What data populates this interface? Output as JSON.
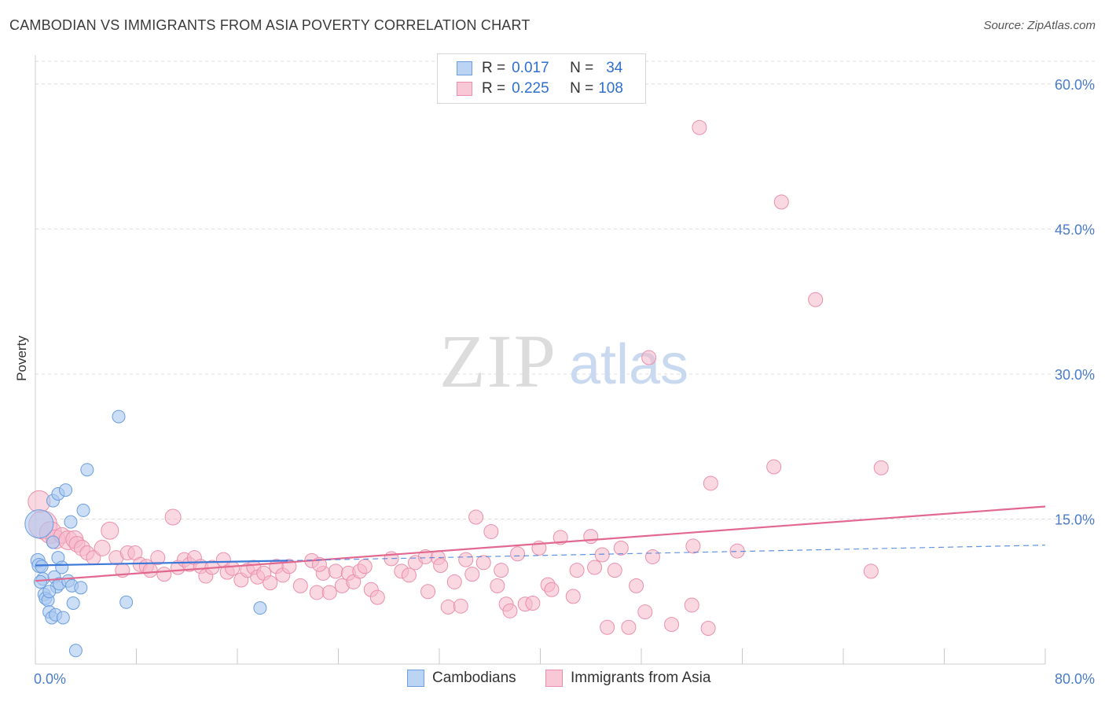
{
  "header": {
    "title": "CAMBODIAN VS IMMIGRANTS FROM ASIA POVERTY CORRELATION CHART",
    "source": "Source: ZipAtlas.com"
  },
  "legend": {
    "rows": [
      {
        "r_label": "R =",
        "r_value": "0.017",
        "n_label": "N =",
        "n_value": "34"
      },
      {
        "r_label": "R =",
        "r_value": "0.225",
        "n_label": "N =",
        "n_value": "108"
      }
    ]
  },
  "watermark": {
    "zip": "ZIP",
    "atlas": "atlas"
  },
  "colors": {
    "blue_fill": "#aac8f0",
    "blue_stroke": "#6a9ee0",
    "blue_line": "#3b78d8",
    "pink_fill": "#f6b8cb",
    "pink_stroke": "#eb8fac",
    "pink_line": "#e2688f",
    "grid": "#dcdcdc",
    "axis_text": "#4a7cc9"
  },
  "chart_data": {
    "type": "scatter",
    "title": "CAMBODIAN VS IMMIGRANTS FROM ASIA POVERTY CORRELATION CHART",
    "xlabel": "",
    "ylabel": "Poverty",
    "xlim": [
      0,
      80
    ],
    "ylim": [
      0,
      63
    ],
    "x_tick_labels": [
      "0.0%",
      "80.0%"
    ],
    "y_ticks": [
      15,
      30,
      45,
      60
    ],
    "y_tick_labels": [
      "15.0%",
      "30.0%",
      "45.0%",
      "60.0%"
    ],
    "grid": true,
    "series": [
      {
        "name": "Cambodians",
        "r": 0.017,
        "n": 34,
        "trend": {
          "x0": 0,
          "y0": 10.2,
          "x1": 20,
          "y1": 10.7,
          "dashed_to_x": 80,
          "dashed_to_y": 12.3
        },
        "points": [
          {
            "x": 0.3,
            "y": 14.5,
            "s": 18
          },
          {
            "x": 0.2,
            "y": 10.7,
            "s": 9
          },
          {
            "x": 0.3,
            "y": 10.2,
            "s": 9
          },
          {
            "x": 0.5,
            "y": 10.1,
            "s": 8
          },
          {
            "x": 0.6,
            "y": 8.8,
            "s": 8
          },
          {
            "x": 0.7,
            "y": 7.2,
            "s": 8
          },
          {
            "x": 0.8,
            "y": 6.8,
            "s": 8
          },
          {
            "x": 1.0,
            "y": 6.6,
            "s": 8
          },
          {
            "x": 1.1,
            "y": 5.4,
            "s": 8
          },
          {
            "x": 1.3,
            "y": 4.8,
            "s": 8
          },
          {
            "x": 1.4,
            "y": 12.6,
            "s": 8
          },
          {
            "x": 1.4,
            "y": 16.9,
            "s": 8
          },
          {
            "x": 1.5,
            "y": 9.0,
            "s": 8
          },
          {
            "x": 1.6,
            "y": 5.1,
            "s": 8
          },
          {
            "x": 1.7,
            "y": 8.0,
            "s": 8
          },
          {
            "x": 1.8,
            "y": 17.6,
            "s": 8
          },
          {
            "x": 1.8,
            "y": 11.0,
            "s": 8
          },
          {
            "x": 1.9,
            "y": 8.3,
            "s": 8
          },
          {
            "x": 2.1,
            "y": 10.0,
            "s": 8
          },
          {
            "x": 2.2,
            "y": 4.8,
            "s": 8
          },
          {
            "x": 2.4,
            "y": 18.0,
            "s": 8
          },
          {
            "x": 2.6,
            "y": 8.6,
            "s": 8
          },
          {
            "x": 2.8,
            "y": 14.7,
            "s": 8
          },
          {
            "x": 2.9,
            "y": 8.1,
            "s": 8
          },
          {
            "x": 3.0,
            "y": 6.3,
            "s": 8
          },
          {
            "x": 3.2,
            "y": 1.4,
            "s": 8
          },
          {
            "x": 3.6,
            "y": 7.9,
            "s": 8
          },
          {
            "x": 3.8,
            "y": 15.9,
            "s": 8
          },
          {
            "x": 4.1,
            "y": 20.1,
            "s": 8
          },
          {
            "x": 6.6,
            "y": 25.6,
            "s": 8
          },
          {
            "x": 7.2,
            "y": 6.4,
            "s": 8
          },
          {
            "x": 17.8,
            "y": 5.8,
            "s": 8
          },
          {
            "x": 1.1,
            "y": 7.5,
            "s": 8
          },
          {
            "x": 0.4,
            "y": 8.5,
            "s": 8
          }
        ]
      },
      {
        "name": "Immigrants from Asia",
        "r": 0.225,
        "n": 108,
        "trend": {
          "x0": 0,
          "y0": 8.6,
          "x1": 80,
          "y1": 16.3
        },
        "points": [
          {
            "x": 0.3,
            "y": 16.8,
            "s": 14
          },
          {
            "x": 0.6,
            "y": 14.4,
            "s": 18
          },
          {
            "x": 1.2,
            "y": 13.6,
            "s": 14
          },
          {
            "x": 1.6,
            "y": 12.9,
            "s": 12
          },
          {
            "x": 2.1,
            "y": 13.3,
            "s": 10
          },
          {
            "x": 2.6,
            "y": 12.8,
            "s": 12
          },
          {
            "x": 3.1,
            "y": 12.9,
            "s": 11
          },
          {
            "x": 3.3,
            "y": 12.4,
            "s": 10
          },
          {
            "x": 3.7,
            "y": 12.0,
            "s": 10
          },
          {
            "x": 4.1,
            "y": 11.5,
            "s": 9
          },
          {
            "x": 4.6,
            "y": 11.0,
            "s": 9
          },
          {
            "x": 5.3,
            "y": 12.0,
            "s": 10
          },
          {
            "x": 5.9,
            "y": 13.8,
            "s": 11
          },
          {
            "x": 6.4,
            "y": 11.0,
            "s": 9
          },
          {
            "x": 6.9,
            "y": 9.7,
            "s": 9
          },
          {
            "x": 7.3,
            "y": 11.5,
            "s": 9
          },
          {
            "x": 7.9,
            "y": 11.5,
            "s": 9
          },
          {
            "x": 8.3,
            "y": 10.3,
            "s": 9
          },
          {
            "x": 8.8,
            "y": 10.1,
            "s": 9
          },
          {
            "x": 9.1,
            "y": 9.7,
            "s": 9
          },
          {
            "x": 9.7,
            "y": 11.0,
            "s": 9
          },
          {
            "x": 10.2,
            "y": 9.3,
            "s": 9
          },
          {
            "x": 10.9,
            "y": 15.2,
            "s": 10
          },
          {
            "x": 11.3,
            "y": 10.0,
            "s": 9
          },
          {
            "x": 11.8,
            "y": 10.8,
            "s": 9
          },
          {
            "x": 12.2,
            "y": 10.3,
            "s": 9
          },
          {
            "x": 12.6,
            "y": 11.0,
            "s": 9
          },
          {
            "x": 13.1,
            "y": 10.1,
            "s": 9
          },
          {
            "x": 13.5,
            "y": 9.1,
            "s": 9
          },
          {
            "x": 14.0,
            "y": 10.0,
            "s": 9
          },
          {
            "x": 14.9,
            "y": 10.8,
            "s": 9
          },
          {
            "x": 15.2,
            "y": 9.5,
            "s": 9
          },
          {
            "x": 15.6,
            "y": 9.9,
            "s": 9
          },
          {
            "x": 16.3,
            "y": 8.7,
            "s": 9
          },
          {
            "x": 16.8,
            "y": 9.7,
            "s": 9
          },
          {
            "x": 17.3,
            "y": 10.0,
            "s": 9
          },
          {
            "x": 17.6,
            "y": 9.0,
            "s": 9
          },
          {
            "x": 18.1,
            "y": 9.4,
            "s": 9
          },
          {
            "x": 18.6,
            "y": 8.4,
            "s": 9
          },
          {
            "x": 19.1,
            "y": 10.1,
            "s": 9
          },
          {
            "x": 19.6,
            "y": 9.2,
            "s": 9
          },
          {
            "x": 20.1,
            "y": 10.1,
            "s": 9
          },
          {
            "x": 21.0,
            "y": 8.1,
            "s": 9
          },
          {
            "x": 21.9,
            "y": 10.7,
            "s": 9
          },
          {
            "x": 22.3,
            "y": 7.4,
            "s": 9
          },
          {
            "x": 22.8,
            "y": 9.4,
            "s": 9
          },
          {
            "x": 23.3,
            "y": 7.4,
            "s": 9
          },
          {
            "x": 23.8,
            "y": 9.6,
            "s": 9
          },
          {
            "x": 24.3,
            "y": 8.1,
            "s": 9
          },
          {
            "x": 24.8,
            "y": 9.4,
            "s": 9
          },
          {
            "x": 25.2,
            "y": 8.5,
            "s": 9
          },
          {
            "x": 25.7,
            "y": 9.6,
            "s": 9
          },
          {
            "x": 26.1,
            "y": 10.1,
            "s": 9
          },
          {
            "x": 26.6,
            "y": 7.7,
            "s": 9
          },
          {
            "x": 27.1,
            "y": 6.9,
            "s": 9
          },
          {
            "x": 28.2,
            "y": 10.9,
            "s": 9
          },
          {
            "x": 29.0,
            "y": 9.6,
            "s": 9
          },
          {
            "x": 29.6,
            "y": 9.2,
            "s": 9
          },
          {
            "x": 30.1,
            "y": 10.5,
            "s": 9
          },
          {
            "x": 30.9,
            "y": 11.1,
            "s": 9
          },
          {
            "x": 31.1,
            "y": 7.5,
            "s": 9
          },
          {
            "x": 31.9,
            "y": 11.0,
            "s": 9
          },
          {
            "x": 32.1,
            "y": 10.2,
            "s": 9
          },
          {
            "x": 32.7,
            "y": 5.9,
            "s": 9
          },
          {
            "x": 33.2,
            "y": 8.5,
            "s": 9
          },
          {
            "x": 33.7,
            "y": 6.0,
            "s": 9
          },
          {
            "x": 34.1,
            "y": 10.8,
            "s": 9
          },
          {
            "x": 34.6,
            "y": 9.3,
            "s": 9
          },
          {
            "x": 34.9,
            "y": 15.2,
            "s": 9
          },
          {
            "x": 35.5,
            "y": 10.5,
            "s": 9
          },
          {
            "x": 36.1,
            "y": 13.7,
            "s": 9
          },
          {
            "x": 36.6,
            "y": 8.1,
            "s": 9
          },
          {
            "x": 36.9,
            "y": 9.7,
            "s": 9
          },
          {
            "x": 37.3,
            "y": 6.2,
            "s": 9
          },
          {
            "x": 37.6,
            "y": 5.5,
            "s": 9
          },
          {
            "x": 38.2,
            "y": 11.4,
            "s": 9
          },
          {
            "x": 38.8,
            "y": 6.2,
            "s": 9
          },
          {
            "x": 39.4,
            "y": 6.3,
            "s": 9
          },
          {
            "x": 39.9,
            "y": 12.0,
            "s": 9
          },
          {
            "x": 40.6,
            "y": 8.2,
            "s": 9
          },
          {
            "x": 40.9,
            "y": 7.7,
            "s": 9
          },
          {
            "x": 41.6,
            "y": 13.1,
            "s": 9
          },
          {
            "x": 42.6,
            "y": 7.0,
            "s": 9
          },
          {
            "x": 42.9,
            "y": 9.7,
            "s": 9
          },
          {
            "x": 44.0,
            "y": 13.2,
            "s": 9
          },
          {
            "x": 44.3,
            "y": 10.0,
            "s": 9
          },
          {
            "x": 44.9,
            "y": 11.3,
            "s": 9
          },
          {
            "x": 45.3,
            "y": 3.8,
            "s": 9
          },
          {
            "x": 45.9,
            "y": 9.7,
            "s": 9
          },
          {
            "x": 46.4,
            "y": 12.0,
            "s": 9
          },
          {
            "x": 47.0,
            "y": 3.8,
            "s": 9
          },
          {
            "x": 47.6,
            "y": 8.1,
            "s": 9
          },
          {
            "x": 48.3,
            "y": 5.4,
            "s": 9
          },
          {
            "x": 48.6,
            "y": 31.7,
            "s": 9
          },
          {
            "x": 48.9,
            "y": 11.1,
            "s": 9
          },
          {
            "x": 50.4,
            "y": 4.1,
            "s": 9
          },
          {
            "x": 52.1,
            "y": 12.2,
            "s": 9
          },
          {
            "x": 52.6,
            "y": 55.5,
            "s": 9
          },
          {
            "x": 53.3,
            "y": 3.7,
            "s": 9
          },
          {
            "x": 53.5,
            "y": 18.7,
            "s": 9
          },
          {
            "x": 55.6,
            "y": 11.7,
            "s": 9
          },
          {
            "x": 58.5,
            "y": 20.4,
            "s": 9
          },
          {
            "x": 59.1,
            "y": 47.8,
            "s": 9
          },
          {
            "x": 61.8,
            "y": 37.7,
            "s": 9
          },
          {
            "x": 66.2,
            "y": 9.6,
            "s": 9
          },
          {
            "x": 67.0,
            "y": 20.3,
            "s": 9
          },
          {
            "x": 52.0,
            "y": 6.1,
            "s": 9
          },
          {
            "x": 22.5,
            "y": 10.3,
            "s": 9
          }
        ]
      }
    ],
    "legend_labels": [
      "Cambodians",
      "Immigrants from Asia"
    ]
  }
}
